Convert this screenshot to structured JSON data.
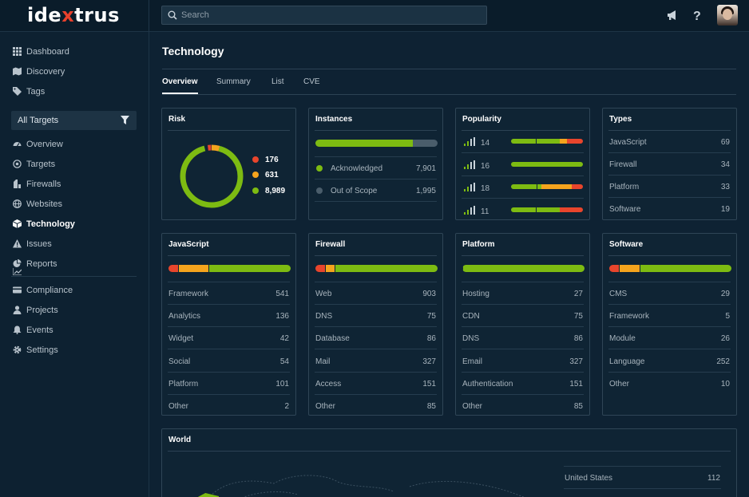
{
  "app": {
    "logo_prefix": "ide",
    "logo_x": "x",
    "logo_suffix": "trus"
  },
  "search": {
    "placeholder": "Search"
  },
  "sidebar": {
    "top_items": [
      {
        "label": "Dashboard",
        "icon": "grid-icon"
      },
      {
        "label": "Discovery",
        "icon": "map-icon"
      },
      {
        "label": "Tags",
        "icon": "tag-icon"
      }
    ],
    "targets_select": "All Targets",
    "target_items": [
      {
        "label": "Overview",
        "icon": "gauge-icon"
      },
      {
        "label": "Targets",
        "icon": "target-icon"
      },
      {
        "label": "Firewalls",
        "icon": "firewall-icon"
      },
      {
        "label": "Websites",
        "icon": "globe-icon"
      },
      {
        "label": "Technology",
        "icon": "cube-icon",
        "active": true
      },
      {
        "label": "Issues",
        "icon": "warning-icon"
      },
      {
        "label": "Reports",
        "icon": "chart-icon"
      }
    ],
    "bottom_items": [
      {
        "label": "Compliance",
        "icon": "card-icon"
      },
      {
        "label": "Projects",
        "icon": "user-icon"
      },
      {
        "label": "Events",
        "icon": "bell-icon"
      },
      {
        "label": "Settings",
        "icon": "gear-icon"
      }
    ]
  },
  "page": {
    "title": "Technology"
  },
  "tabs": [
    "Overview",
    "Summary",
    "List",
    "CVE"
  ],
  "colors": {
    "red": "#e8452c",
    "orange": "#f5a41d",
    "green": "#7dbb12",
    "grey": "#4a5d6b"
  },
  "risk": {
    "title": "Risk",
    "items": [
      {
        "value": "176",
        "color": "#e8452c"
      },
      {
        "value": "631",
        "color": "#f5a41d"
      },
      {
        "value": "8,989",
        "color": "#7dbb12"
      }
    ],
    "shares": [
      176,
      631,
      8989
    ]
  },
  "instances": {
    "title": "Instances",
    "bar": [
      0.8,
      0.2
    ],
    "rows": [
      {
        "label": "Acknowledged",
        "value": "7,901",
        "color": "#7dbb12"
      },
      {
        "label": "Out of Scope",
        "value": "1,995",
        "color": "#4a5d6b"
      }
    ]
  },
  "popularity": {
    "title": "Popularity",
    "rows": [
      {
        "value": "14",
        "bar": [
          0.34,
          0.34,
          0.1,
          0.22
        ]
      },
      {
        "value": "16",
        "bar": [
          1.0,
          0,
          0,
          0
        ]
      },
      {
        "value": "18",
        "bar": [
          0.36,
          0.06,
          0.42,
          0.16
        ]
      },
      {
        "value": "11",
        "bar": [
          0.34,
          0.34,
          0,
          0.32
        ]
      }
    ]
  },
  "types": {
    "title": "Types",
    "rows": [
      {
        "label": "JavaScript",
        "value": "69"
      },
      {
        "label": "Firewall",
        "value": "34"
      },
      {
        "label": "Platform",
        "value": "33"
      },
      {
        "label": "Software",
        "value": "19"
      }
    ]
  },
  "categories": [
    {
      "title": "JavaScript",
      "bar": [
        0.08,
        0.25,
        0.67
      ],
      "rows": [
        {
          "label": "Framework",
          "value": "541"
        },
        {
          "label": "Analytics",
          "value": "136"
        },
        {
          "label": "Widget",
          "value": "42"
        },
        {
          "label": "Social",
          "value": "54"
        },
        {
          "label": "Platform",
          "value": "101"
        },
        {
          "label": "Other",
          "value": "2"
        }
      ]
    },
    {
      "title": "Firewall",
      "bar": [
        0.08,
        0.08,
        0.84
      ],
      "rows": [
        {
          "label": "Web",
          "value": "903"
        },
        {
          "label": "DNS",
          "value": "75"
        },
        {
          "label": "Database",
          "value": "86"
        },
        {
          "label": "Mail",
          "value": "327"
        },
        {
          "label": "Access",
          "value": "151"
        },
        {
          "label": "Other",
          "value": "85"
        }
      ]
    },
    {
      "title": "Platform",
      "bar": [
        0,
        0,
        1.0
      ],
      "rows": [
        {
          "label": "Hosting",
          "value": "27"
        },
        {
          "label": "CDN",
          "value": "75"
        },
        {
          "label": "DNS",
          "value": "86"
        },
        {
          "label": "Email",
          "value": "327"
        },
        {
          "label": "Authentication",
          "value": "151"
        },
        {
          "label": "Other",
          "value": "85"
        }
      ]
    },
    {
      "title": "Software",
      "bar": [
        0.08,
        0.17,
        0.75
      ],
      "rows": [
        {
          "label": "CMS",
          "value": "29"
        },
        {
          "label": "Framework",
          "value": "5"
        },
        {
          "label": "Module",
          "value": "26"
        },
        {
          "label": "Language",
          "value": "252"
        },
        {
          "label": "Other",
          "value": "10"
        }
      ]
    }
  ],
  "world": {
    "title": "World",
    "rows": [
      {
        "label": "United States",
        "value": "112"
      }
    ]
  }
}
